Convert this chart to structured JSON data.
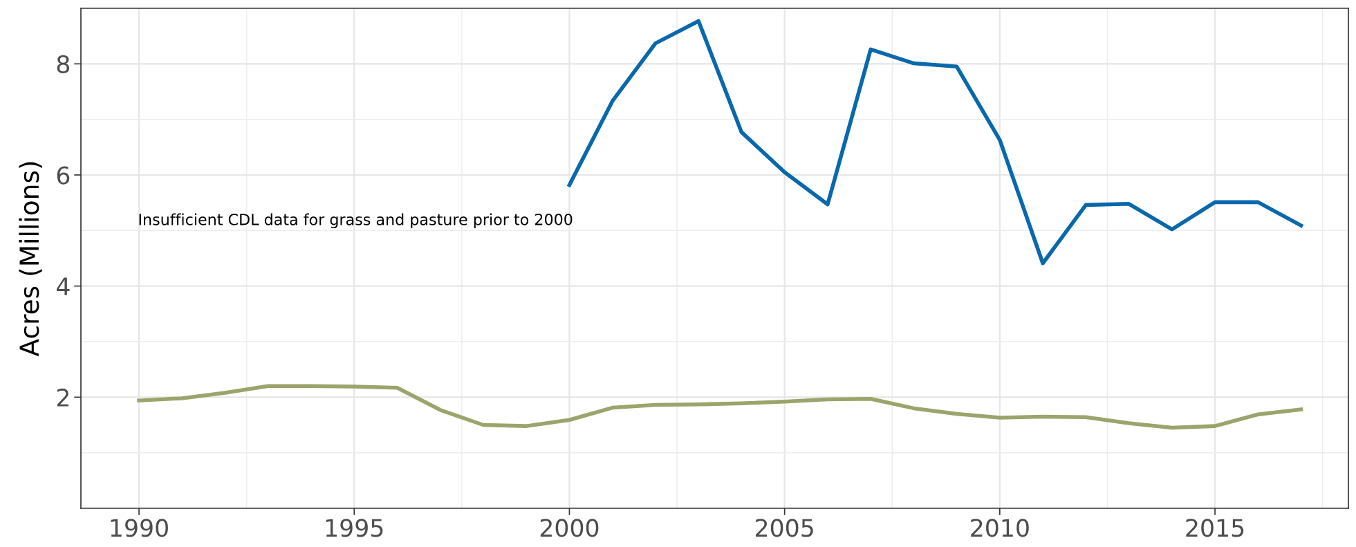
{
  "chart_data": {
    "type": "line",
    "ylabel": "Acres (Millions)",
    "x": [
      1990,
      1991,
      1992,
      1993,
      1994,
      1995,
      1996,
      1997,
      1998,
      1999,
      2000,
      2001,
      2002,
      2003,
      2004,
      2005,
      2006,
      2007,
      2008,
      2009,
      2010,
      2011,
      2012,
      2013,
      2014,
      2015,
      2016,
      2017
    ],
    "series": [
      {
        "color": "#0868ac",
        "values": [
          null,
          null,
          null,
          null,
          null,
          null,
          null,
          null,
          null,
          null,
          5.82,
          7.33,
          8.37,
          8.77,
          6.77,
          6.05,
          5.47,
          8.26,
          8.01,
          7.95,
          6.63,
          4.41,
          5.46,
          5.48,
          5.02,
          5.51,
          5.51,
          5.09
        ]
      },
      {
        "color": "#9ca46c",
        "values": [
          1.94,
          1.98,
          2.08,
          2.2,
          2.2,
          2.19,
          2.17,
          1.77,
          1.5,
          1.48,
          1.59,
          1.81,
          1.86,
          1.87,
          1.89,
          1.92,
          1.96,
          1.97,
          1.8,
          1.7,
          1.63,
          1.65,
          1.64,
          1.53,
          1.45,
          1.48,
          1.69,
          1.78
        ]
      }
    ],
    "annotations": [
      "Insufficient CDL data for grass and pasture prior to 2000"
    ],
    "xlim": [
      1988.65,
      2018.1
    ],
    "xticks": [
      1990,
      1995,
      2000,
      2005,
      2010,
      2015
    ],
    "ylim": [
      0,
      9
    ],
    "yticks": [
      2,
      4,
      6,
      8
    ],
    "grid": true,
    "legend": false,
    "line_style": "solid",
    "marker": "none"
  }
}
